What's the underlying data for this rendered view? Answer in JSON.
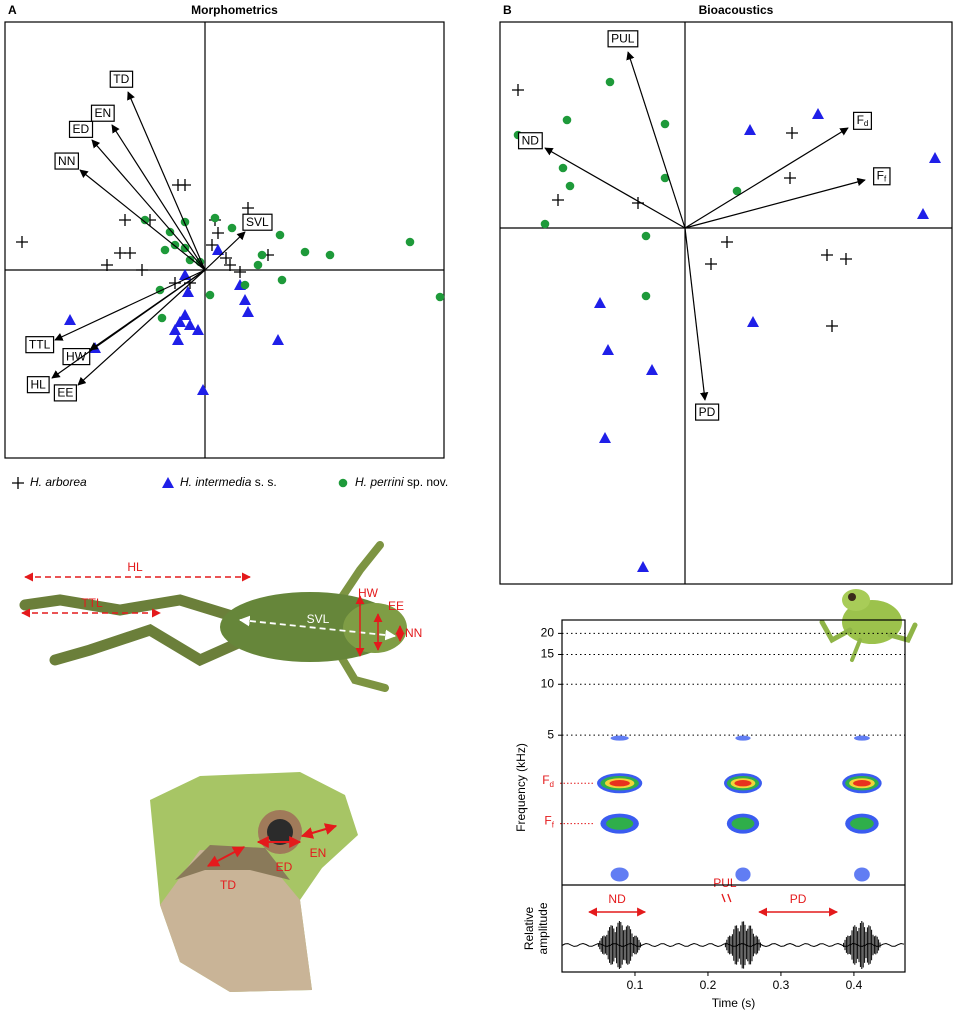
{
  "chart_data": [
    {
      "type": "biplot",
      "panel": "A",
      "title": "Morphometrics",
      "xlim": [
        -2,
        2.39
      ],
      "ylim": [
        -1.88,
        2.48
      ],
      "series": [
        {
          "name": "H. arborea",
          "marker": "plus",
          "color": "#000000",
          "x": [
            -1.83,
            -0.98,
            -0.85,
            -0.75,
            -0.63,
            -0.8,
            -0.55,
            -0.27,
            -0.2,
            -0.3,
            -0.15,
            0.1,
            0.07,
            0.13,
            0.43,
            0.25,
            0.35,
            0.63,
            0.21
          ],
          "y": [
            0.28,
            0.05,
            0.17,
            0.17,
            0,
            0.5,
            0.5,
            0.85,
            0.85,
            -0.13,
            -0.13,
            0.5,
            0.25,
            0.37,
            0.62,
            0.05,
            -0.02,
            0.15,
            0.12
          ]
        },
        {
          "name": "H. intermedia",
          "name_note": "s. s.",
          "marker": "triangle",
          "color": "#1f1fe8",
          "x": [
            -1.35,
            -1.1,
            -0.2,
            -0.17,
            -0.3,
            -0.25,
            -0.15,
            -0.07,
            -0.2,
            -0.27,
            0.4,
            0.43,
            0.35,
            0.73,
            -0.02,
            0.13
          ],
          "y": [
            -0.5,
            -0.78,
            -0.05,
            -0.22,
            -0.6,
            -0.52,
            -0.55,
            -0.6,
            -0.45,
            -0.7,
            -0.3,
            -0.42,
            -0.15,
            -0.7,
            -1.2,
            0.2
          ]
        },
        {
          "name": "H. perrini",
          "name_note": "sp. nov.",
          "marker": "circle",
          "color": "#1e9a3a",
          "x": [
            2.05,
            2.35,
            1.0,
            1.25,
            0.77,
            0.57,
            0.53,
            0.4,
            0.05,
            -0.4,
            -0.6,
            -0.35,
            -0.2,
            -0.3,
            -0.2,
            -0.45,
            -0.43,
            0.1,
            0.75,
            0.27,
            -0.15,
            -0.05
          ],
          "y": [
            0.28,
            -0.27,
            0.18,
            0.15,
            -0.1,
            0.15,
            0.05,
            -0.15,
            -0.25,
            0.2,
            0.5,
            0.38,
            0.48,
            0.25,
            0.22,
            -0.2,
            -0.48,
            0.52,
            0.35,
            0.42,
            0.1,
            0.08
          ]
        }
      ],
      "loadings": [
        {
          "label": "TD",
          "x": -0.77,
          "y": 1.78
        },
        {
          "label": "EN",
          "x": -0.93,
          "y": 1.45
        },
        {
          "label": "ED",
          "x": -1.13,
          "y": 1.3
        },
        {
          "label": "NN",
          "x": -1.25,
          "y": 1.0
        },
        {
          "label": "SVL",
          "x": 0.4,
          "y": 0.38
        },
        {
          "label": "HW",
          "x": -1.15,
          "y": -0.8
        },
        {
          "label": "TTL",
          "x": -1.5,
          "y": -0.7
        },
        {
          "label": "HL",
          "x": -1.53,
          "y": -1.08
        },
        {
          "label": "EE",
          "x": -1.27,
          "y": -1.15
        }
      ]
    },
    {
      "type": "biplot",
      "panel": "B",
      "title": "Bioacoustics",
      "xlim": [
        -1.85,
        2.67
      ],
      "ylim": [
        -3.56,
        2.06
      ],
      "series": [
        {
          "name": "H. arborea",
          "marker": "plus",
          "color": "#000000",
          "x": [
            -1.67,
            -1.27,
            -0.47,
            1.07,
            1.05,
            0.42,
            0.26,
            1.42,
            1.61,
            1.47
          ],
          "y": [
            1.38,
            0.28,
            0.25,
            0.95,
            0.5,
            -0.14,
            -0.36,
            -0.27,
            -0.31,
            -0.98
          ]
        },
        {
          "name": "H. intermedia",
          "marker": "triangle",
          "color": "#1f1fe8",
          "x": [
            0.65,
            1.33,
            2.5,
            2.38,
            -0.85,
            -0.77,
            -0.33,
            -0.8,
            0.68,
            -0.42
          ],
          "y": [
            0.98,
            1.14,
            0.7,
            0.14,
            -0.75,
            -1.22,
            -1.42,
            -2.1,
            -0.94,
            -3.39
          ]
        },
        {
          "name": "H. perrini",
          "marker": "circle",
          "color": "#1e9a3a",
          "x": [
            -0.75,
            -1.18,
            -0.2,
            -1.67,
            -1.22,
            -1.15,
            -1.4,
            -0.2,
            0.52,
            -0.39,
            -0.39
          ],
          "y": [
            1.46,
            1.08,
            1.04,
            0.93,
            0.6,
            0.42,
            0.04,
            0.5,
            0.37,
            -0.08,
            -0.68
          ]
        }
      ],
      "loadings": [
        {
          "label": "PUL",
          "x": -0.57,
          "y": 1.76
        },
        {
          "label": "ND",
          "x": -1.4,
          "y": 0.8
        },
        {
          "label": "F",
          "sub": "d",
          "x": 1.63,
          "y": 1.0
        },
        {
          "label": "F",
          "sub": "f",
          "x": 1.8,
          "y": 0.48
        },
        {
          "label": "PD",
          "x": 0.2,
          "y": -1.72
        }
      ]
    },
    {
      "type": "spectrogram",
      "xlabel": "Time (s)",
      "ylabel": "Frequency (kHz)",
      "amplitude_label": [
        "Relative",
        "amplitude"
      ],
      "xlim": [
        0,
        0.47
      ],
      "xticks": [
        0.1,
        0.2,
        0.3,
        0.4
      ],
      "ylim": [
        0.65,
        24
      ],
      "yticks": [
        5,
        10,
        15,
        20
      ],
      "log_y": true,
      "grid": true,
      "bands": [
        {
          "label": "F",
          "sub": "d",
          "freq": 2.6
        },
        {
          "label": "F",
          "sub": "f",
          "freq": 1.5
        }
      ],
      "other_bands": [
        4.8,
        0.75
      ],
      "notes": [
        {
          "start": 0.048,
          "end": 0.11
        },
        {
          "start": 0.222,
          "end": 0.274
        },
        {
          "start": 0.384,
          "end": 0.438
        }
      ],
      "annotations": [
        {
          "label": "ND",
          "start": 0.037,
          "end": 0.114
        },
        {
          "label": "PUL",
          "start": 0.222,
          "end": 0.23
        },
        {
          "label": "PD",
          "start": 0.27,
          "end": 0.377
        }
      ]
    }
  ],
  "frog_body": {
    "labels": [
      "HL",
      "TTL",
      "SVL",
      "HW",
      "EE",
      "NN"
    ]
  },
  "frog_head": {
    "labels": [
      "TD",
      "ED",
      "EN"
    ]
  }
}
